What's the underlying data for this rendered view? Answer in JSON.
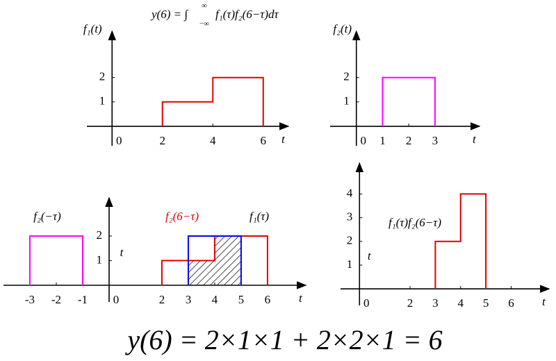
{
  "header": {
    "formula": "y(6) = ∫",
    "upper": "∞",
    "lower": "−∞",
    "integrand": "f₁(τ)f₂(6−τ)dτ"
  },
  "footer": {
    "formula": "y(6) = 2×1×1 + 2×2×1 = 6"
  },
  "chart_data": [
    {
      "type": "line",
      "ylabel": "f₁(t)",
      "xlabel": "t",
      "xlim": [
        -1,
        7
      ],
      "ylim": [
        -0.8,
        3.9
      ],
      "xticks": [
        0,
        2,
        4,
        6
      ],
      "yticks": [
        1,
        2
      ],
      "series": [
        {
          "color": "#e00000",
          "x": [
            2,
            2,
            4,
            4,
            6,
            6
          ],
          "values": [
            0,
            1,
            1,
            2,
            2,
            0
          ]
        }
      ]
    },
    {
      "type": "line",
      "ylabel": "f₂(t)",
      "xlabel": "t",
      "xlim": [
        -1,
        4.7
      ],
      "ylim": [
        -0.8,
        3.9
      ],
      "xticks": [
        0,
        1,
        2,
        3
      ],
      "yticks": [
        1,
        2
      ],
      "series": [
        {
          "color": "#ff00ff",
          "x": [
            1,
            1,
            3,
            3
          ],
          "values": [
            0,
            2,
            2,
            0
          ]
        }
      ]
    },
    {
      "type": "line",
      "ylabel": "t",
      "xlabel": "t",
      "xlim": [
        -4,
        7.45
      ],
      "ylim": [
        -0.68,
        3.55
      ],
      "xticks": [
        -3,
        -2,
        -1,
        0,
        2,
        3,
        4,
        5,
        6
      ],
      "yticks": [
        1,
        2
      ],
      "series": [
        {
          "hatch": true,
          "color": "#000000",
          "x": [
            3,
            3,
            4,
            4,
            5,
            5
          ],
          "values": [
            0,
            1,
            1,
            2,
            2,
            0
          ]
        },
        {
          "name": "f₂(−τ)",
          "color": "#ff00ff",
          "x": [
            -3,
            -3,
            -1,
            -1
          ],
          "values": [
            0,
            2,
            2,
            0
          ]
        },
        {
          "name": "f₁(τ)",
          "color": "#e00000",
          "x": [
            2,
            2,
            4,
            4,
            6,
            6
          ],
          "values": [
            0,
            1,
            1,
            2,
            2,
            0
          ]
        },
        {
          "name": "f₂(6−τ)",
          "color": "#0000ff",
          "x": [
            3,
            3,
            5,
            5
          ],
          "values": [
            0,
            2,
            2,
            0
          ]
        }
      ]
    },
    {
      "type": "line",
      "ylabel": "t",
      "xlabel": "t",
      "xlim": [
        -0.75,
        7.5
      ],
      "ylim": [
        -0.7,
        5.3
      ],
      "xticks": [
        0,
        2,
        3,
        4,
        5,
        6
      ],
      "yticks": [
        1,
        2,
        3,
        4
      ],
      "annotation": "f₁(τ)f₂(6−τ)",
      "series": [
        {
          "color": "#e00000",
          "x": [
            3,
            3,
            4,
            4,
            5,
            5
          ],
          "values": [
            0,
            2,
            2,
            4,
            4,
            0
          ]
        }
      ]
    }
  ]
}
